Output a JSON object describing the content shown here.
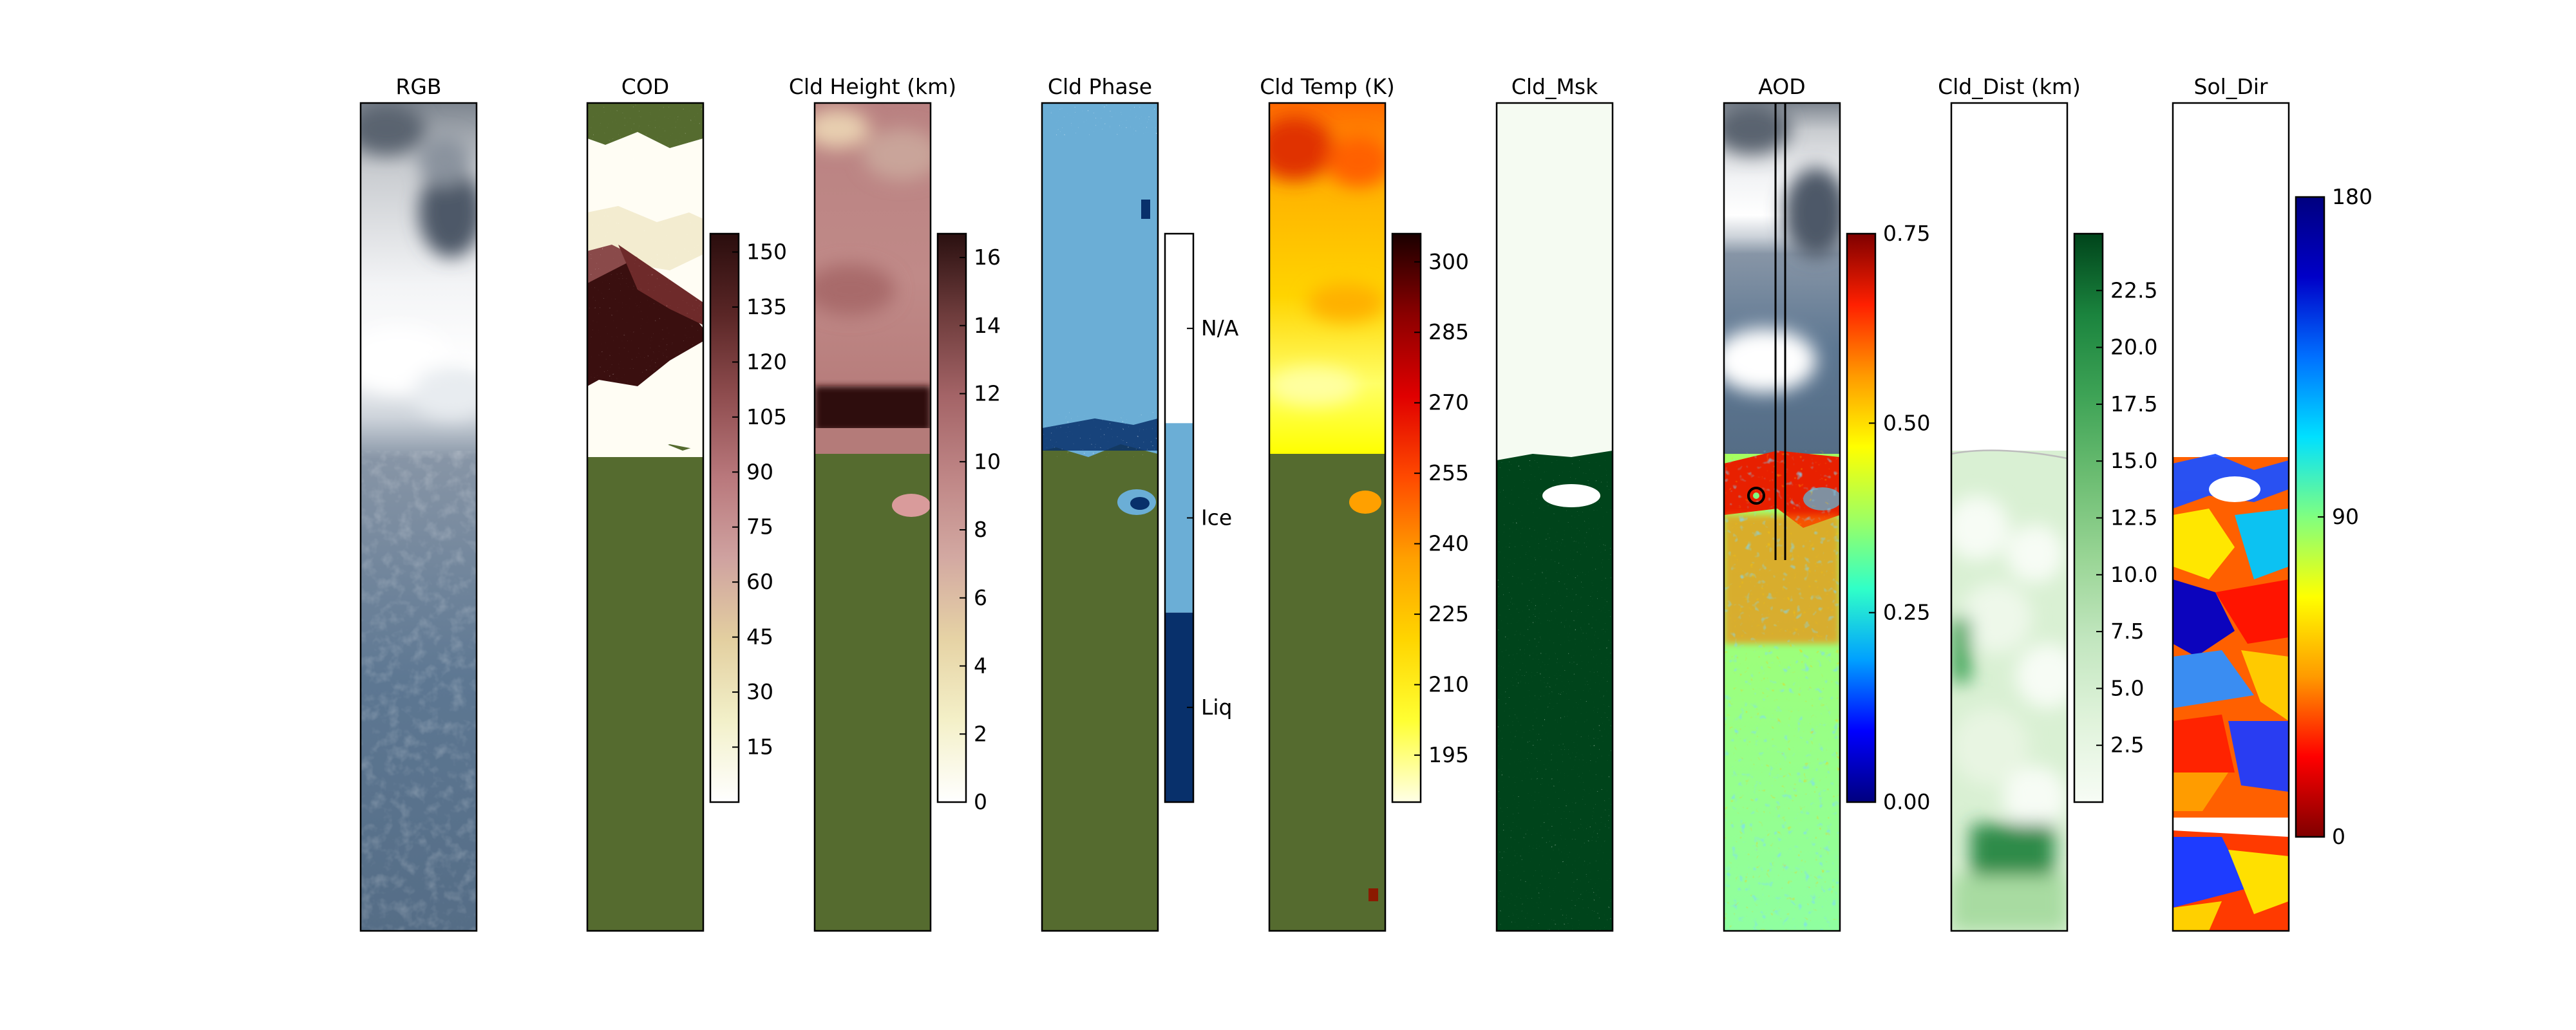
{
  "chart_data": {
    "type": "heatmap",
    "panels": [
      {
        "id": "rgb",
        "title": "RGB",
        "colorbar": null
      },
      {
        "id": "cod",
        "title": "COD",
        "colorbar": {
          "ticks": [
            "15",
            "30",
            "45",
            "60",
            "75",
            "90",
            "105",
            "120",
            "135",
            "150"
          ],
          "range": [
            0,
            155
          ],
          "colors": [
            "#ffffff",
            "#f2f0c9",
            "#e3cfa0",
            "#cfa2a0",
            "#b9787c",
            "#8f4d4f",
            "#5a2626",
            "#2a0d0d"
          ]
        }
      },
      {
        "id": "height",
        "title": "Cld Height (km)",
        "colorbar": {
          "ticks": [
            "0",
            "2",
            "4",
            "6",
            "8",
            "10",
            "12",
            "14",
            "16"
          ],
          "range": [
            0,
            16.7
          ],
          "colors": [
            "#ffffff",
            "#f4f0c8",
            "#e6d3a5",
            "#d3a9a2",
            "#bf8686",
            "#a46467",
            "#6e3c3c",
            "#2a1010"
          ]
        }
      },
      {
        "id": "phase",
        "title": "Cld Phase",
        "colorbar": {
          "ticks": [
            "N/A",
            "Ice",
            "Liq"
          ],
          "categorical": true,
          "colors": [
            "#ffffff",
            "#6baed6",
            "#08306b"
          ]
        }
      },
      {
        "id": "temp",
        "title": "Cld Temp (K)",
        "colorbar": {
          "ticks": [
            "195",
            "210",
            "225",
            "240",
            "255",
            "270",
            "285",
            "300"
          ],
          "range": [
            185,
            306
          ],
          "colors": [
            "#ffffe6",
            "#ffff33",
            "#ffd500",
            "#ffa000",
            "#ff4a00",
            "#e00000",
            "#8b0000",
            "#1a0000"
          ]
        }
      },
      {
        "id": "mask",
        "title": "Cld_Msk",
        "colorbar": null
      },
      {
        "id": "aod",
        "title": "AOD",
        "colorbar": {
          "ticks": [
            "0.00",
            "0.25",
            "0.50",
            "0.75"
          ],
          "range": [
            0,
            0.75
          ],
          "colors": [
            "#00007f",
            "#0000ff",
            "#00a0ff",
            "#30ffc8",
            "#a0ff60",
            "#ffff00",
            "#ff9a00",
            "#ff2000",
            "#7f0000"
          ]
        }
      },
      {
        "id": "dist",
        "title": "Cld_Dist (km)",
        "colorbar": {
          "ticks": [
            "2.5",
            "5.0",
            "7.5",
            "10.0",
            "12.5",
            "15.0",
            "17.5",
            "20.0",
            "22.5"
          ],
          "range": [
            0,
            25
          ],
          "colors": [
            "#f7fcf5",
            "#e0f3db",
            "#c2e6bf",
            "#99d595",
            "#6cbd72",
            "#3ea356",
            "#1b843e",
            "#00441b"
          ]
        }
      },
      {
        "id": "sol",
        "title": "Sol_Dir",
        "colorbar": {
          "ticks": [
            "0",
            "90",
            "180"
          ],
          "range": [
            0,
            180
          ],
          "colors": [
            "#7f0000",
            "#ff0000",
            "#ff9a00",
            "#ffff00",
            "#80ff80",
            "#00e0ff",
            "#0070ff",
            "#0000c8",
            "#00007f"
          ]
        }
      }
    ]
  }
}
